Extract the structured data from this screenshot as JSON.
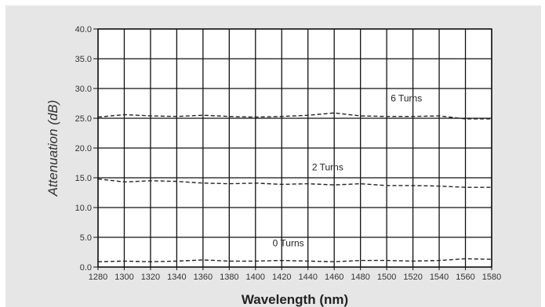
{
  "chart_data": {
    "type": "line",
    "xlabel": "Wavelength (nm)",
    "ylabel": "Attenuation (dB)",
    "xlim": [
      1280,
      1580
    ],
    "ylim": [
      0,
      40
    ],
    "x_ticks": [
      "1280",
      "1300",
      "1320",
      "1340",
      "1360",
      "1380",
      "1400",
      "1420",
      "1440",
      "1460",
      "1480",
      "1500",
      "1520",
      "1540",
      "1560",
      "1580"
    ],
    "y_ticks": [
      "0.0",
      "5.0",
      "10.0",
      "15.0",
      "20.0",
      "25.0",
      "30.0",
      "35.0",
      "40.0"
    ],
    "grid": true,
    "legend": "none",
    "series": [
      {
        "name": "6 Turns",
        "x": [
          1280,
          1300,
          1320,
          1340,
          1360,
          1380,
          1400,
          1420,
          1440,
          1460,
          1480,
          1500,
          1520,
          1540,
          1560,
          1580
        ],
        "values": [
          25.2,
          25.6,
          25.4,
          25.3,
          25.5,
          25.3,
          25.2,
          25.3,
          25.5,
          25.9,
          25.4,
          25.3,
          25.3,
          25.4,
          24.9,
          24.9
        ]
      },
      {
        "name": "2 Turns",
        "x": [
          1280,
          1300,
          1320,
          1340,
          1360,
          1380,
          1400,
          1420,
          1440,
          1460,
          1480,
          1500,
          1520,
          1540,
          1560,
          1580
        ],
        "values": [
          14.8,
          14.3,
          14.5,
          14.4,
          14.1,
          14.0,
          14.1,
          13.9,
          14.0,
          13.8,
          14.0,
          13.7,
          13.7,
          13.6,
          13.4,
          13.4
        ]
      },
      {
        "name": "0 Turns",
        "x": [
          1280,
          1300,
          1320,
          1340,
          1360,
          1380,
          1400,
          1420,
          1440,
          1460,
          1480,
          1500,
          1520,
          1540,
          1560,
          1580
        ],
        "values": [
          0.9,
          1.0,
          0.9,
          1.0,
          1.2,
          1.0,
          1.0,
          1.1,
          1.0,
          0.9,
          1.1,
          1.1,
          1.0,
          1.1,
          1.4,
          1.3
        ]
      }
    ],
    "series_labels": [
      {
        "text": "6 Turns",
        "series": 0,
        "at_x": 1515,
        "offset_db": 2.5
      },
      {
        "text": "2 Turns",
        "series": 1,
        "at_x": 1455,
        "offset_db": 2.4
      },
      {
        "text": "0 Turns",
        "series": 2,
        "at_x": 1425,
        "offset_db": 2.4
      }
    ],
    "colors": {
      "background": "#e6e6e6",
      "plot_area": "#ffffff",
      "grid": "#111111",
      "series_line": "#222222"
    }
  }
}
